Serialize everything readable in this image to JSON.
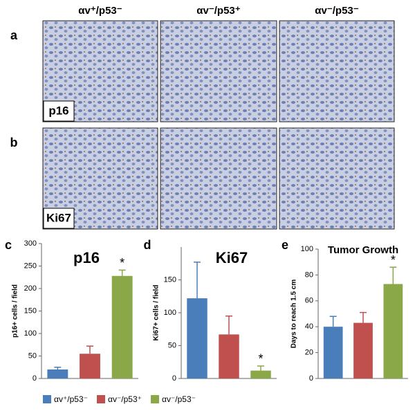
{
  "column_headers": [
    "αv⁺/p53⁻",
    "αv⁻/p53⁺",
    "αv⁻/p53⁻"
  ],
  "rows": [
    {
      "letter": "a",
      "label": "p16"
    },
    {
      "letter": "b",
      "label": "Ki67"
    }
  ],
  "legend": [
    {
      "name": "αv⁺/p53⁻",
      "color": "#4a7ebb"
    },
    {
      "name": "αv⁻/p53⁺",
      "color": "#c0504d"
    },
    {
      "name": "αv⁻/p53⁻",
      "color": "#8aa848"
    }
  ],
  "chart_data": [
    {
      "type": "bar",
      "panel": "c",
      "title": "p16",
      "ylabel": "p16+ cells / field",
      "values": [
        20,
        55,
        228
      ],
      "errors": [
        5,
        17,
        13
      ],
      "ylim": [
        0,
        300
      ],
      "yticks": [
        0,
        50,
        100,
        150,
        200,
        250,
        300
      ],
      "annotation": {
        "index": 2,
        "text": "*"
      }
    },
    {
      "type": "bar",
      "panel": "d",
      "title": "Ki67",
      "ylabel": "Ki67+ cells / field",
      "values": [
        122,
        67,
        12
      ],
      "errors": [
        55,
        28,
        7
      ],
      "ylim": [
        0,
        200
      ],
      "yticks": [
        0,
        50,
        100,
        150
      ],
      "annotation": {
        "index": 2,
        "text": "*"
      }
    },
    {
      "type": "bar",
      "panel": "e",
      "title": "Tumor Growth",
      "ylabel": "Days to reach 1.5 cm",
      "values": [
        40,
        43,
        73
      ],
      "errors": [
        8,
        8,
        13
      ],
      "ylim": [
        0,
        100
      ],
      "yticks": [
        0,
        20,
        40,
        60,
        80,
        100
      ],
      "annotation": {
        "index": 2,
        "text": "*"
      }
    }
  ]
}
